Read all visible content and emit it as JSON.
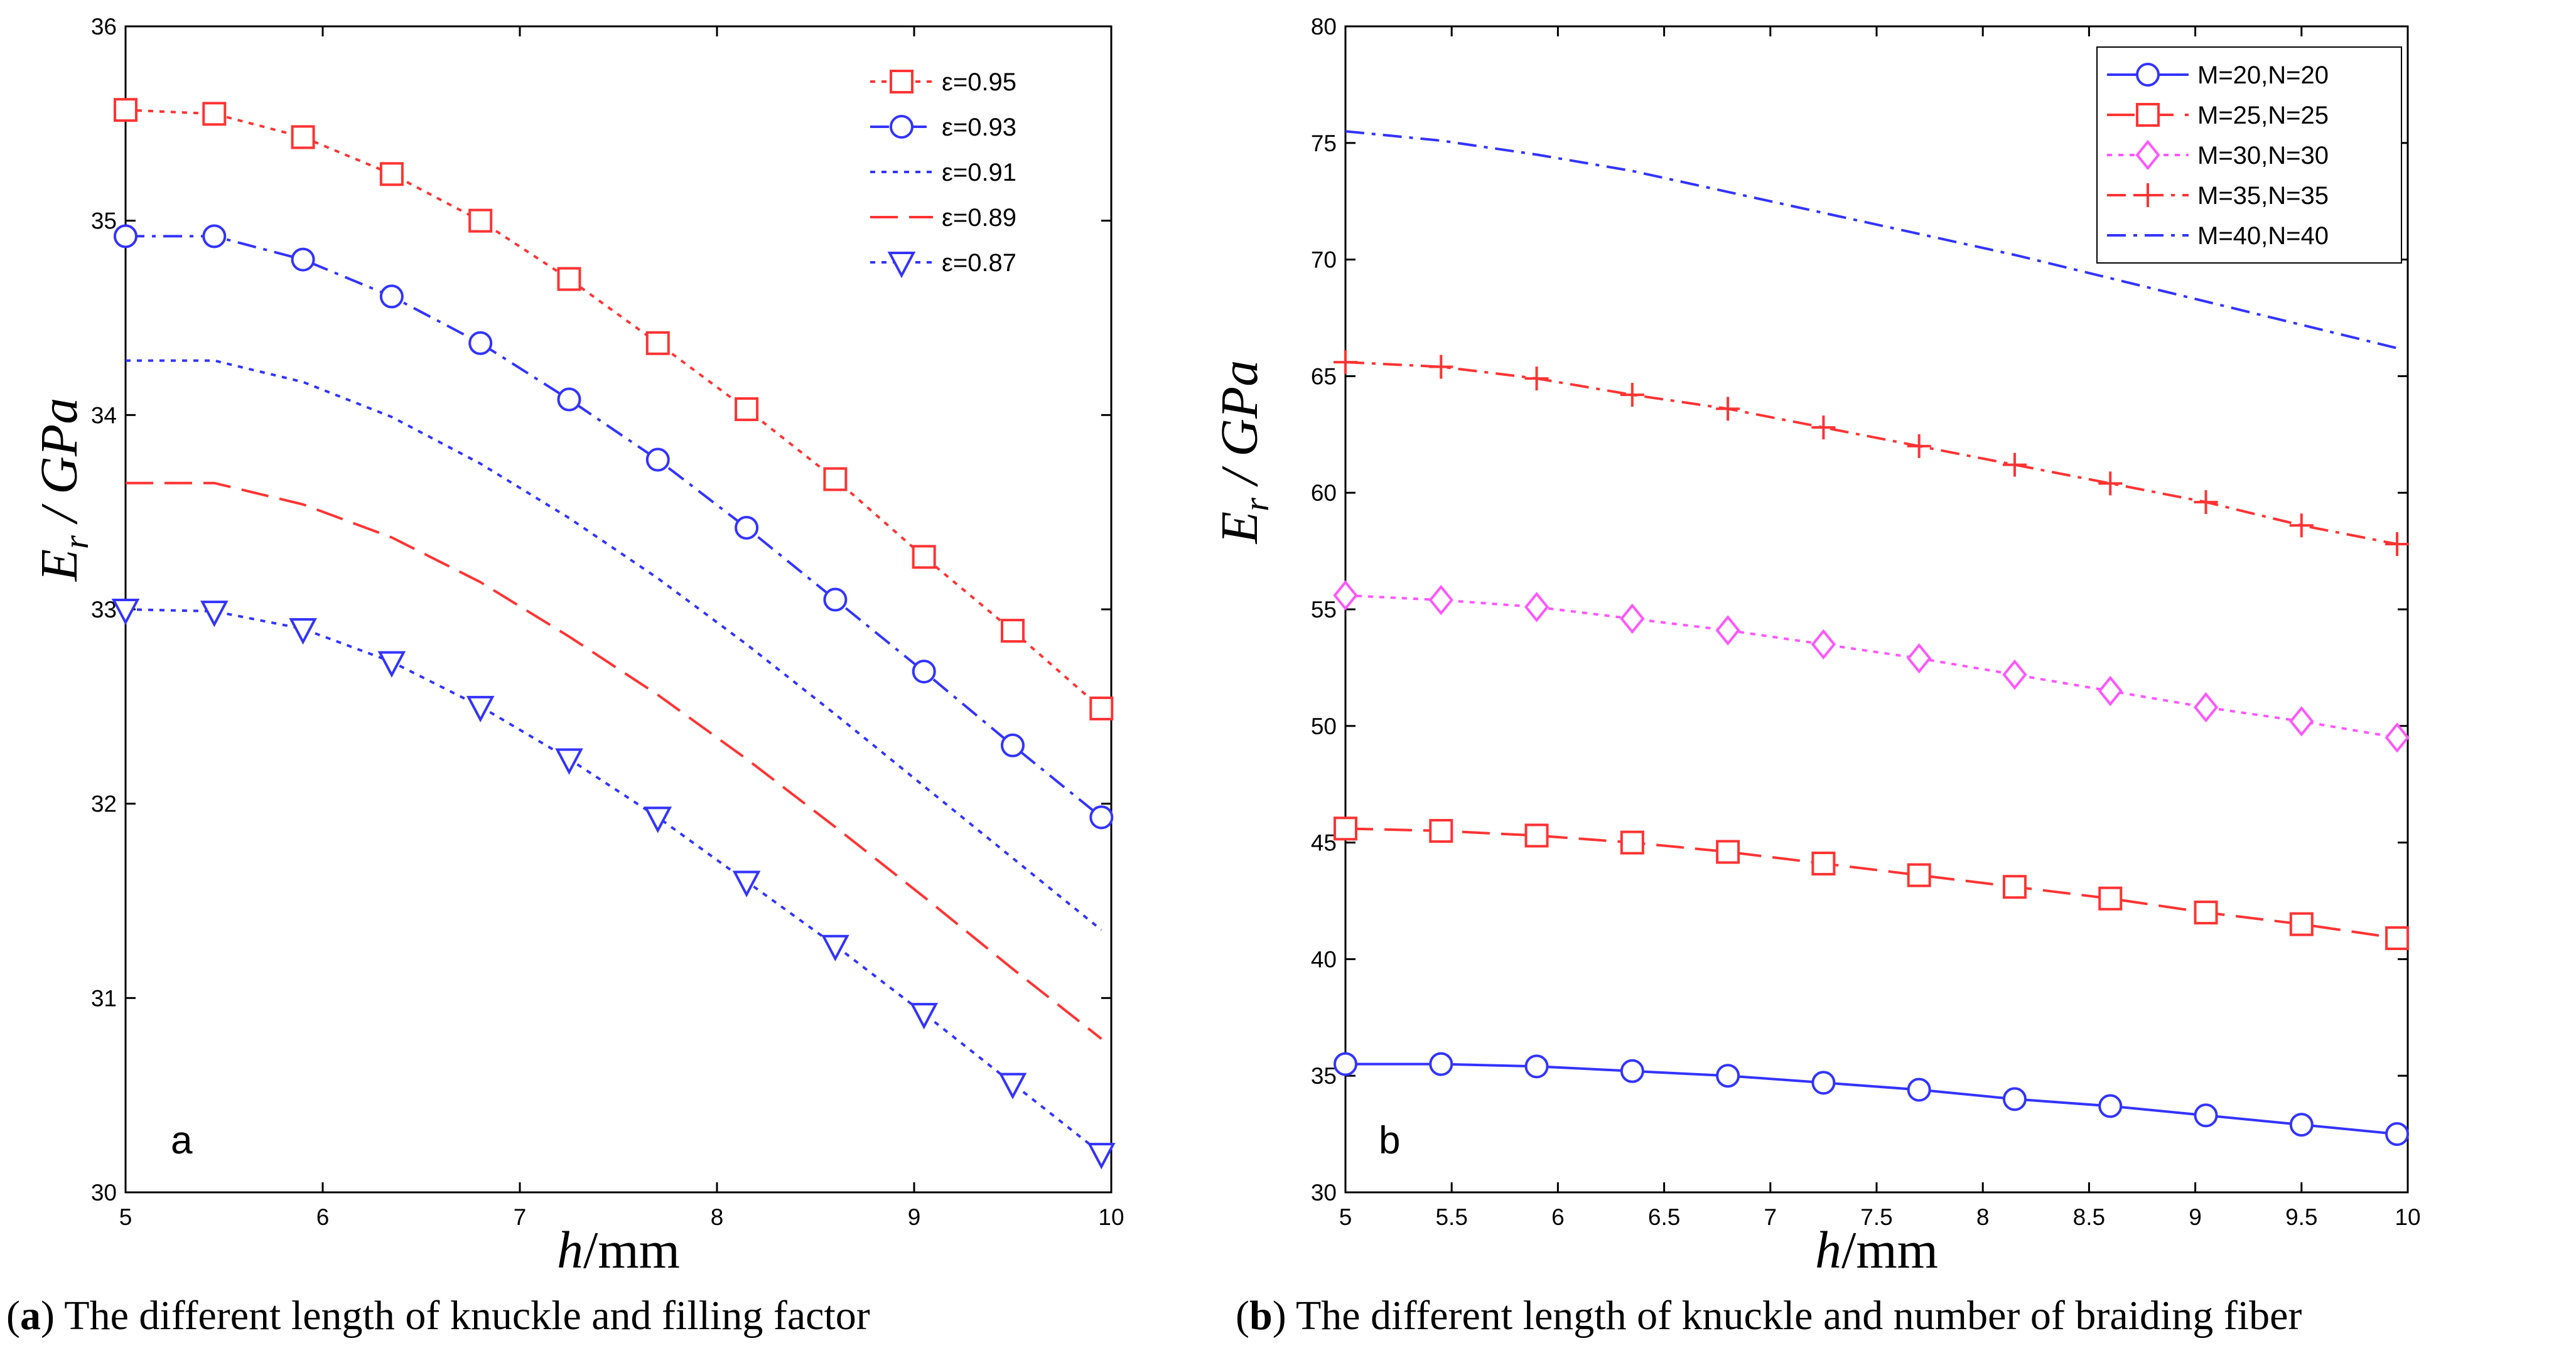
{
  "chart_data": [
    {
      "type": "line",
      "panel_label": "a",
      "caption_tag": "a",
      "caption_text": " The different length of knuckle and filling factor",
      "xlabel_italic": "h",
      "xlabel_rest": "/mm",
      "ylabel_main": "E",
      "ylabel_sub": "r",
      "ylabel_rest": " / GPa",
      "xlim": [
        5,
        10
      ],
      "ylim": [
        30,
        36
      ],
      "xticks": [
        "5",
        "6",
        "7",
        "8",
        "9",
        "10"
      ],
      "yticks": [
        "30",
        "31",
        "32",
        "33",
        "34",
        "35",
        "36"
      ],
      "legend_position": "top-right",
      "x": [
        5,
        5.45,
        5.9,
        6.35,
        6.8,
        7.25,
        7.7,
        8.15,
        8.6,
        9.05,
        9.5,
        9.95
      ],
      "series": [
        {
          "name": "ε=0.95",
          "color": "#ff3333",
          "dash": "dotted",
          "marker": "square",
          "values": [
            35.57,
            35.55,
            35.43,
            35.24,
            35.0,
            34.7,
            34.37,
            34.03,
            33.67,
            33.27,
            32.89,
            32.49
          ]
        },
        {
          "name": "ε=0.93",
          "color": "#3333ff",
          "dash": "dashdot",
          "marker": "circle",
          "values": [
            34.92,
            34.92,
            34.8,
            34.61,
            34.37,
            34.08,
            33.77,
            33.42,
            33.05,
            32.68,
            32.3,
            31.93
          ]
        },
        {
          "name": "ε=0.91",
          "color": "#3333ff",
          "dash": "dotted",
          "marker": "none",
          "values": [
            34.28,
            34.28,
            34.17,
            33.99,
            33.75,
            33.47,
            33.16,
            32.82,
            32.46,
            32.09,
            31.72,
            31.35
          ]
        },
        {
          "name": "ε=0.89",
          "color": "#ff3333",
          "dash": "dashed",
          "marker": "none",
          "values": [
            33.65,
            33.65,
            33.54,
            33.37,
            33.14,
            32.86,
            32.56,
            32.23,
            31.88,
            31.52,
            31.15,
            30.79
          ]
        },
        {
          "name": "ε=0.87",
          "color": "#3333ff",
          "dash": "dotted",
          "marker": "triangle-down",
          "values": [
            33.0,
            32.99,
            32.9,
            32.73,
            32.5,
            32.23,
            31.93,
            31.6,
            31.27,
            30.92,
            30.56,
            30.2
          ]
        }
      ]
    },
    {
      "type": "line",
      "panel_label": "b",
      "caption_tag": "b",
      "caption_text": " The different length of knuckle and number of braiding fiber",
      "xlabel_italic": "h",
      "xlabel_rest": "/mm",
      "ylabel_main": "E",
      "ylabel_sub": "r",
      "ylabel_rest": " / GPa",
      "xlim": [
        5,
        10
      ],
      "ylim": [
        30,
        80
      ],
      "xticks": [
        "5",
        "5.5",
        "6",
        "6.5",
        "7",
        "7.5",
        "8",
        "8.5",
        "9",
        "9.5",
        "10"
      ],
      "yticks": [
        "30",
        "35",
        "40",
        "45",
        "50",
        "55",
        "60",
        "65",
        "70",
        "75",
        "80"
      ],
      "legend_position": "top-right",
      "x": [
        5,
        5.45,
        5.9,
        6.35,
        6.8,
        7.25,
        7.7,
        8.15,
        8.6,
        9.05,
        9.5,
        9.95
      ],
      "series": [
        {
          "name": "M=20,N=20",
          "color": "#3333ff",
          "dash": "solid",
          "marker": "circle",
          "values": [
            35.5,
            35.5,
            35.4,
            35.2,
            35.0,
            34.7,
            34.4,
            34.0,
            33.7,
            33.3,
            32.9,
            32.5
          ]
        },
        {
          "name": "M=25,N=25",
          "color": "#ff3333",
          "dash": "dashed",
          "marker": "square",
          "values": [
            45.6,
            45.5,
            45.3,
            45.0,
            44.6,
            44.1,
            43.6,
            43.1,
            42.6,
            42.0,
            41.5,
            40.9
          ]
        },
        {
          "name": "M=30,N=30",
          "color": "#ff55ff",
          "dash": "dotted",
          "marker": "diamond",
          "values": [
            55.6,
            55.4,
            55.1,
            54.6,
            54.1,
            53.5,
            52.9,
            52.2,
            51.5,
            50.8,
            50.2,
            49.5
          ]
        },
        {
          "name": "M=35,N=35",
          "color": "#ff3333",
          "dash": "dashdot",
          "marker": "plus",
          "values": [
            65.6,
            65.4,
            64.9,
            64.2,
            63.6,
            62.8,
            62.0,
            61.2,
            60.4,
            59.6,
            58.6,
            57.8
          ]
        },
        {
          "name": "M=40,N=40",
          "color": "#3333ff",
          "dash": "dashdot",
          "marker": "none",
          "values": [
            75.5,
            75.1,
            74.5,
            73.8,
            72.9,
            72.0,
            71.1,
            70.2,
            69.2,
            68.2,
            67.2,
            66.2
          ]
        }
      ]
    }
  ]
}
